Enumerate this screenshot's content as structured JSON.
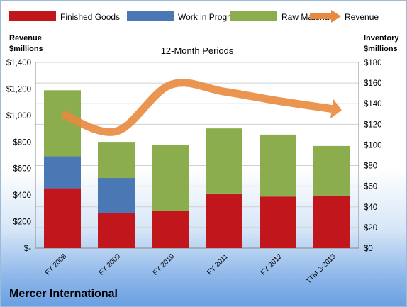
{
  "chart_data": {
    "type": "bar",
    "title": "12-Month Periods",
    "company": "Mercer International",
    "categories": [
      "FY 2008",
      "FY 2009",
      "FY 2010",
      "FY 2011",
      "FY 2012",
      "TTM 3-2013"
    ],
    "stacked": true,
    "left_axis": {
      "label_line1": "Revenue",
      "label_line2": "$millions",
      "ylim": [
        0,
        1400
      ],
      "ticks": [
        "$-",
        "$200",
        "$400",
        "$600",
        "$800",
        "$1,000",
        "$1,200",
        "$1,400"
      ]
    },
    "right_axis": {
      "label_line1": "Inventory",
      "label_line2": "$millions",
      "ylim": [
        0,
        180
      ],
      "ticks": [
        "$0",
        "$20",
        "$40",
        "$60",
        "$80",
        "$100",
        "$120",
        "$140",
        "$160",
        "$180"
      ]
    },
    "series": [
      {
        "name": "Finished Goods",
        "color": "#c0161c",
        "axis": "right",
        "values": [
          58,
          34,
          36,
          53,
          50,
          51
        ]
      },
      {
        "name": "Work in Progress",
        "color": "#4a78b5",
        "axis": "right",
        "values": [
          31,
          34,
          0,
          0,
          0,
          0
        ]
      },
      {
        "name": "Raw Materials",
        "color": "#8cad4e",
        "axis": "right",
        "values": [
          64,
          35,
          64,
          63,
          60,
          48
        ]
      },
      {
        "name": "Revenue",
        "color": "#e8893d",
        "axis": "left",
        "type": "line",
        "values": [
          1010,
          880,
          1230,
          1180,
          1110,
          1050
        ]
      }
    ],
    "grid": true,
    "legend_position": "top"
  }
}
